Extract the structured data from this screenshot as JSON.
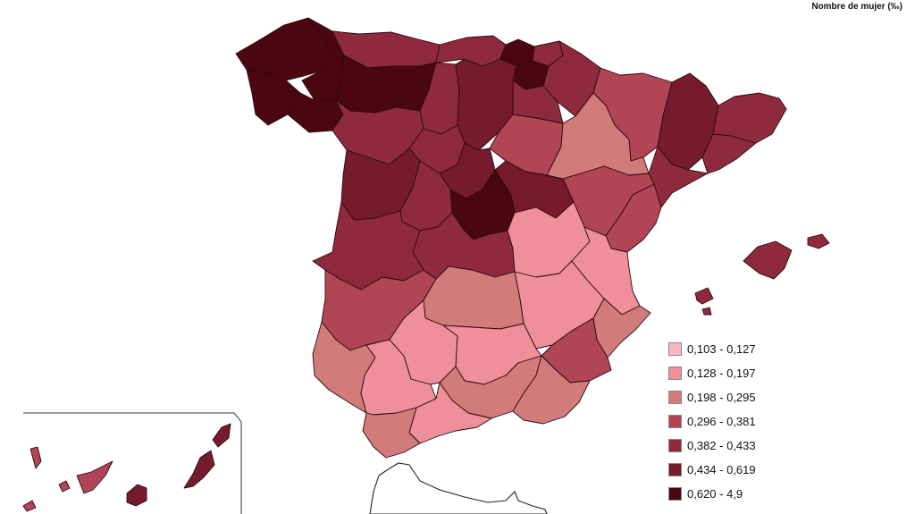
{
  "map": {
    "title": "Nombre de mujer (‰)",
    "colors": [
      "#f8b8c2",
      "#ee8f9a",
      "#d27b7b",
      "#b04556",
      "#8f2a3e",
      "#751b2c",
      "#4a0712"
    ],
    "legend": [
      {
        "label": "0,103 - 0,127",
        "color": "#f8b8c2"
      },
      {
        "label": "0,128 - 0,197",
        "color": "#ee8f9a"
      },
      {
        "label": "0,198 - 0,295",
        "color": "#d27b7b"
      },
      {
        "label": "0,296 - 0,381",
        "color": "#b04556"
      },
      {
        "label": "0,382 - 0,433",
        "color": "#8f2a3e"
      },
      {
        "label": "0,434 - 0,619",
        "color": "#751b2c"
      },
      {
        "label": "0,620 - 4,9",
        "color": "#4a0712"
      }
    ]
  }
}
